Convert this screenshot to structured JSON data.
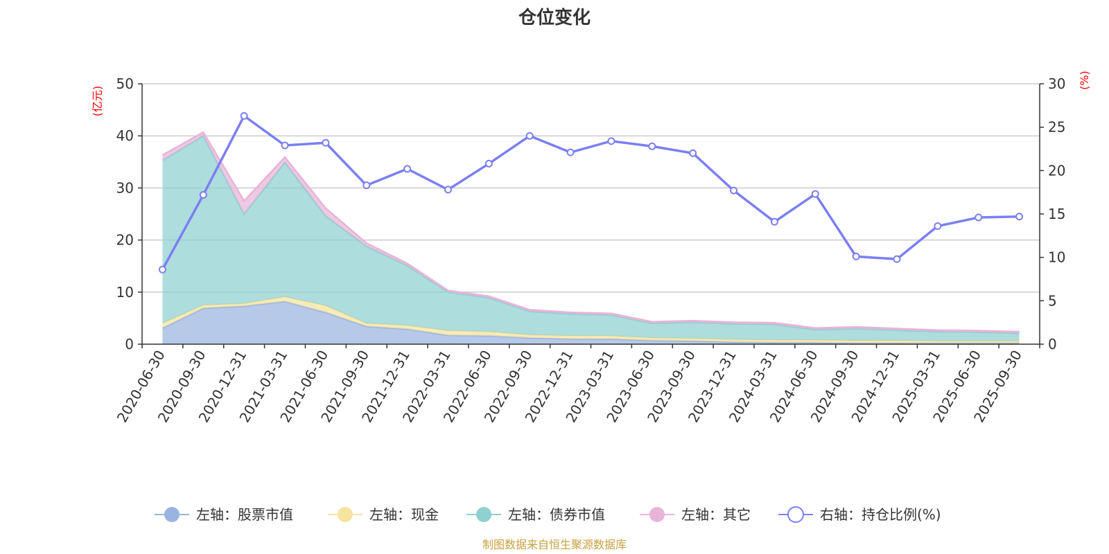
{
  "chart_data": {
    "type": "area",
    "title": "仓位变化",
    "source_note": "制图数据来自恒生聚源数据库",
    "left_axis": {
      "unit": "(亿元)",
      "ylim": [
        0,
        50
      ],
      "ticks": [
        0,
        10,
        20,
        30,
        40,
        50
      ]
    },
    "right_axis": {
      "unit": "(%)",
      "ylim": [
        0,
        30
      ],
      "ticks": [
        0,
        5,
        10,
        15,
        20,
        25,
        30
      ]
    },
    "categories": [
      "2020-06-30",
      "2020-09-30",
      "2020-12-31",
      "2021-03-31",
      "2021-06-30",
      "2021-09-30",
      "2021-12-31",
      "2022-03-31",
      "2022-06-30",
      "2022-09-30",
      "2022-12-31",
      "2023-03-31",
      "2023-06-30",
      "2023-09-30",
      "2023-12-31",
      "2024-03-31",
      "2024-06-30",
      "2024-09-30",
      "2024-12-31",
      "2025-03-31",
      "2025-06-30",
      "2025-09-30"
    ],
    "series": [
      {
        "name": "左轴：股票市值",
        "axis": "left",
        "kind": "stacked-area",
        "color": "#9ab4e0",
        "values": [
          3.1,
          6.9,
          7.3,
          8.2,
          6.1,
          3.4,
          2.9,
          1.7,
          1.6,
          1.2,
          1.0,
          1.0,
          0.7,
          0.6,
          0.4,
          0.3,
          0.3,
          0.2,
          0.2,
          0.2,
          0.2,
          0.2
        ]
      },
      {
        "name": "左轴：现金",
        "axis": "left",
        "kind": "stacked-area",
        "color": "#f5e3a0",
        "values": [
          0.9,
          0.6,
          0.5,
          0.9,
          1.3,
          0.6,
          0.7,
          0.9,
          0.8,
          0.6,
          0.6,
          0.6,
          0.5,
          0.5,
          0.5,
          0.5,
          0.5,
          0.5,
          0.5,
          0.4,
          0.4,
          0.4
        ]
      },
      {
        "name": "左轴：债券市值",
        "axis": "left",
        "kind": "stacked-area",
        "color": "#8fd0d0",
        "values": [
          31.3,
          32.5,
          17.2,
          25.8,
          17.2,
          14.8,
          11.5,
          7.4,
          6.5,
          4.5,
          4.2,
          4.0,
          2.8,
          3.1,
          3.0,
          3.0,
          2.0,
          2.3,
          2.0,
          1.8,
          1.7,
          1.5
        ]
      },
      {
        "name": "左轴：其它",
        "axis": "left",
        "kind": "stacked-area",
        "color": "#e8b4d8",
        "values": [
          1.0,
          0.7,
          2.5,
          1.0,
          1.5,
          0.6,
          0.4,
          0.3,
          0.3,
          0.3,
          0.3,
          0.3,
          0.3,
          0.3,
          0.3,
          0.3,
          0.3,
          0.3,
          0.3,
          0.3,
          0.3,
          0.3
        ]
      },
      {
        "name": "右轴：持仓比例(%)",
        "axis": "right",
        "kind": "line",
        "color": "#7b7ff2",
        "values": [
          8.6,
          17.2,
          26.3,
          22.9,
          23.2,
          18.3,
          20.2,
          17.8,
          20.8,
          24.0,
          22.1,
          23.4,
          22.8,
          22.0,
          17.7,
          14.1,
          17.3,
          10.1,
          9.8,
          13.6,
          14.6,
          14.7
        ]
      }
    ]
  }
}
